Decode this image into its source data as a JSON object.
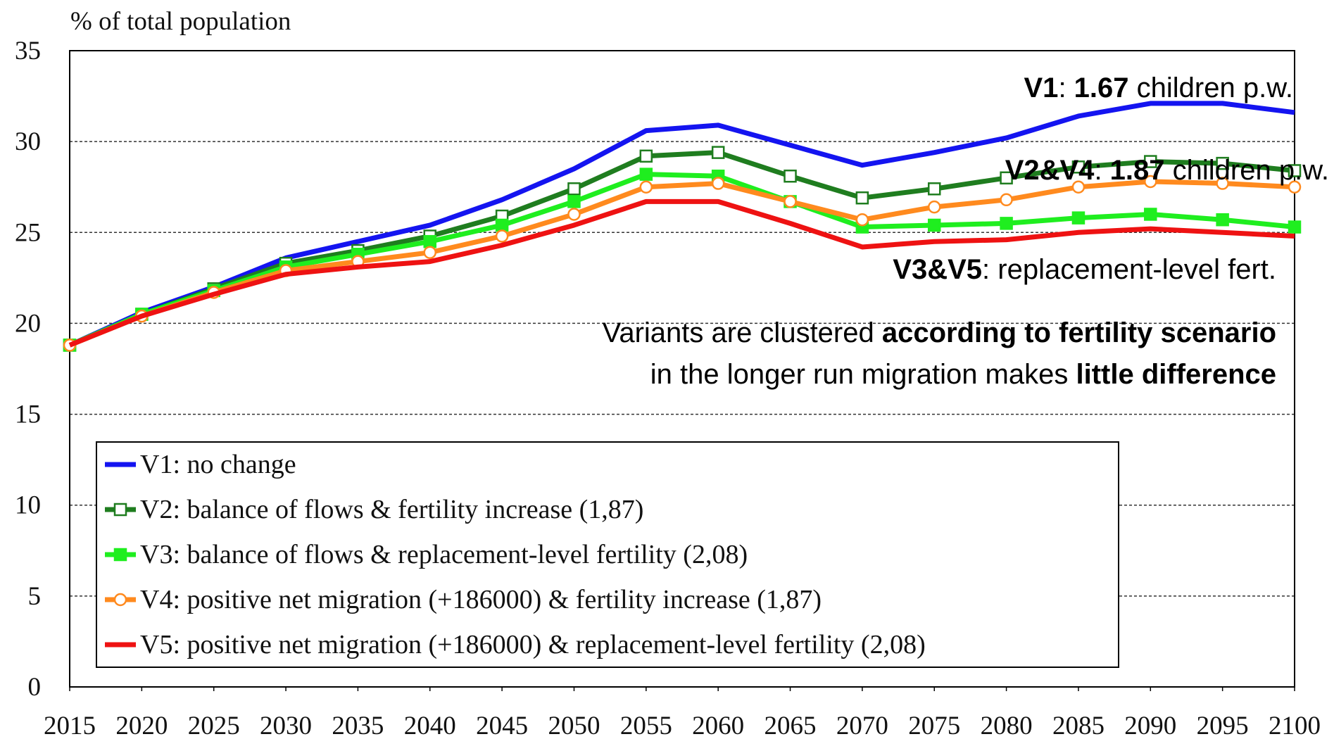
{
  "chart_data": {
    "type": "line",
    "y_label": "% of total population",
    "x": [
      2015,
      2020,
      2025,
      2030,
      2035,
      2040,
      2045,
      2050,
      2055,
      2060,
      2065,
      2070,
      2075,
      2080,
      2085,
      2090,
      2095,
      2100
    ],
    "xlim": [
      2015,
      2100
    ],
    "xticks": [
      2015,
      2020,
      2025,
      2030,
      2035,
      2040,
      2045,
      2050,
      2055,
      2060,
      2065,
      2070,
      2075,
      2080,
      2085,
      2090,
      2095,
      2100
    ],
    "ylim": [
      0,
      35
    ],
    "yticks": [
      0,
      5,
      10,
      15,
      20,
      25,
      30,
      35
    ],
    "grid": true,
    "legend": "lower left",
    "series": [
      {
        "name": "V1: no change",
        "color": "#1414f0",
        "marker": "none",
        "values": [
          18.8,
          20.6,
          22.0,
          23.6,
          24.5,
          25.4,
          26.8,
          28.5,
          30.6,
          30.9,
          29.8,
          28.7,
          29.4,
          30.2,
          31.4,
          32.1,
          32.1,
          31.6
        ]
      },
      {
        "name": "V2: balance of flows & fertility increase (1,87)",
        "color": "#1f7d1f",
        "marker": "square-open",
        "values": [
          18.8,
          20.5,
          21.9,
          23.3,
          24.0,
          24.8,
          25.9,
          27.4,
          29.2,
          29.4,
          28.1,
          26.9,
          27.4,
          28.0,
          28.6,
          28.9,
          28.8,
          28.4
        ]
      },
      {
        "name": "V3: balance of flows & replacement-level fertility (2,08)",
        "color": "#1fee1f",
        "marker": "square",
        "values": [
          18.8,
          20.5,
          21.8,
          23.1,
          23.8,
          24.5,
          25.4,
          26.7,
          28.2,
          28.1,
          26.7,
          25.3,
          25.4,
          25.5,
          25.8,
          26.0,
          25.7,
          25.3
        ]
      },
      {
        "name": "V4: positive net migration (+186000) & fertility increase (1,87)",
        "color": "#ff8a1e",
        "marker": "circle-open",
        "values": [
          18.8,
          20.4,
          21.7,
          22.9,
          23.4,
          23.9,
          24.8,
          26.0,
          27.5,
          27.7,
          26.7,
          25.7,
          26.4,
          26.8,
          27.5,
          27.8,
          27.7,
          27.5
        ]
      },
      {
        "name": "V5: positive net migration (+186000) & replacement-level fertility (2,08)",
        "color": "#ee1212",
        "marker": "none",
        "values": [
          18.8,
          20.4,
          21.6,
          22.7,
          23.1,
          23.4,
          24.3,
          25.4,
          26.7,
          26.7,
          25.5,
          24.2,
          24.5,
          24.6,
          25.0,
          25.2,
          25.0,
          24.8
        ]
      }
    ],
    "annotations": [
      {
        "parts": [
          {
            "text": "V1",
            "bold": true
          },
          {
            "text": ": ",
            "bold": false
          },
          {
            "text": "1.67",
            "bold": true
          },
          {
            "text": " children p.w.",
            "bold": false
          }
        ]
      },
      {
        "parts": [
          {
            "text": "V2&V4",
            "bold": true
          },
          {
            "text": ": ",
            "bold": false
          },
          {
            "text": "1.87",
            "bold": true
          },
          {
            "text": " children p.w.",
            "bold": false
          }
        ]
      },
      {
        "parts": [
          {
            "text": "V3&V5",
            "bold": true
          },
          {
            "text": ": replacement-level fert.",
            "bold": false
          }
        ]
      },
      {
        "parts": [
          {
            "text": "Variants are clustered ",
            "bold": false
          },
          {
            "text": "according to fertility scenario",
            "bold": true
          }
        ]
      },
      {
        "parts": [
          {
            "text": "in the longer run migration makes ",
            "bold": false
          },
          {
            "text": "little difference",
            "bold": true
          }
        ]
      }
    ]
  }
}
